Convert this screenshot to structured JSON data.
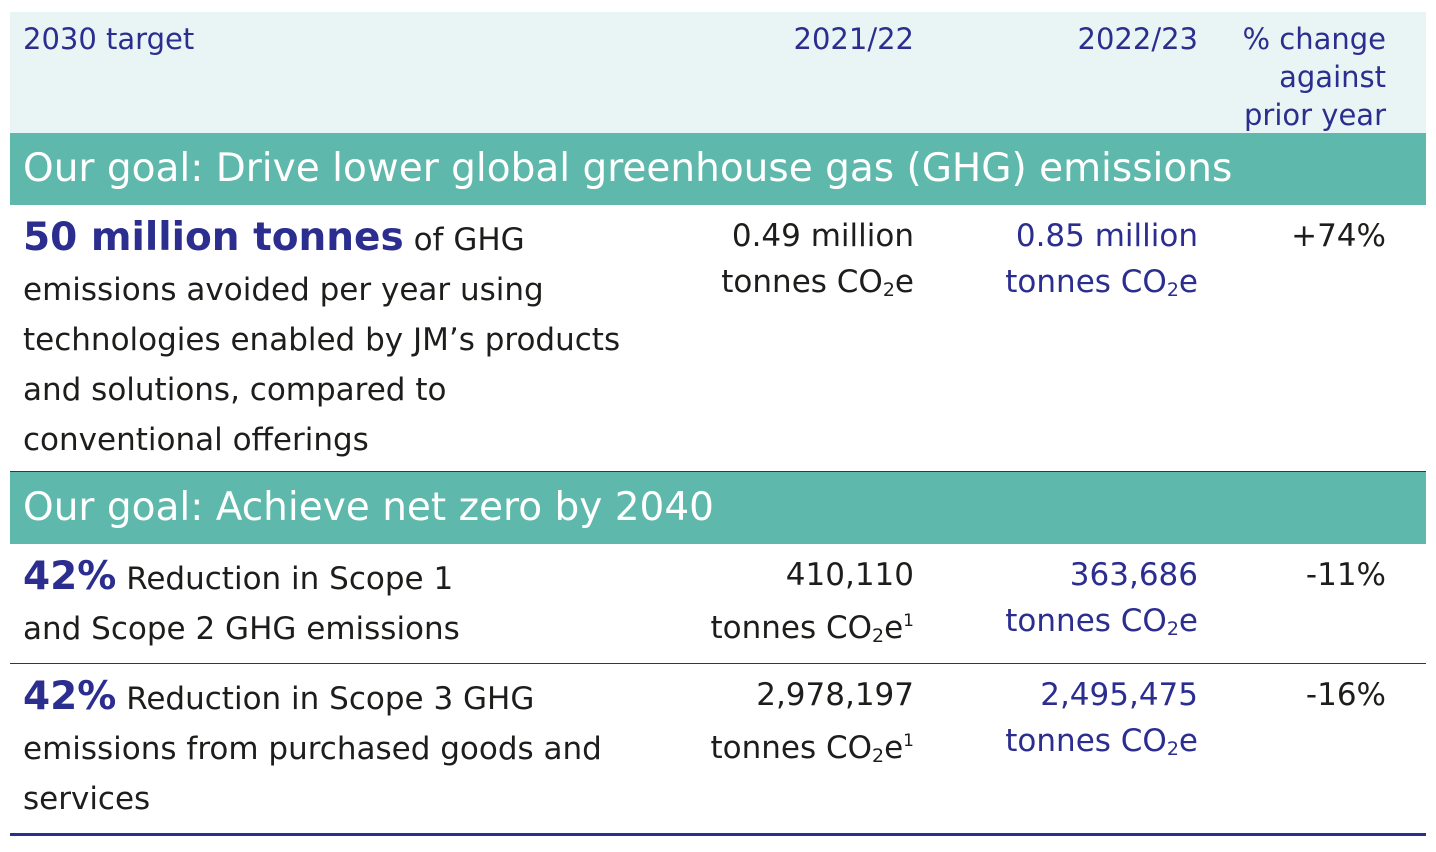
{
  "header": {
    "target": "2030 target",
    "year1": "2021/22",
    "year2": "2022/23",
    "change": "% change\nagainst\nprior year"
  },
  "goals": [
    {
      "title": "Our goal: Drive lower global greenhouse gas (GHG) emissions",
      "rows": [
        {
          "highlight": "50 million tonnes",
          "text": " of GHG emissions avoided per year using technologies enabled by JM’s products and solutions, compared to conventional offerings",
          "v1_line1": "0.49 million",
          "v1_unit": "tonnes CO",
          "v1_sub": "2",
          "v1_tail": "e",
          "v1_sup": "",
          "v2_line1": "0.85 million",
          "v2_unit": "tonnes CO",
          "v2_sub": "2",
          "v2_tail": "e",
          "change": "+74%"
        }
      ]
    },
    {
      "title": "Our goal: Achieve net zero by 2040",
      "rows": [
        {
          "highlight": "42%",
          "text": " Reduction in Scope 1 and Scope 2 GHG emissions",
          "v1_line1": "410,110",
          "v1_unit": "tonnes CO",
          "v1_sub": "2",
          "v1_tail": "e",
          "v1_sup": "1",
          "v2_line1": "363,686",
          "v2_unit": "tonnes CO",
          "v2_sub": "2",
          "v2_tail": "e",
          "change": "-11%"
        },
        {
          "highlight": "42%",
          "text": " Reduction in Scope 3 GHG emissions from purchased goods and services",
          "v1_line1": "2,978,197",
          "v1_unit": "tonnes CO",
          "v1_sub": "2",
          "v1_tail": "e",
          "v1_sup": "1",
          "v2_line1": "2,495,475",
          "v2_unit": "tonnes CO",
          "v2_sub": "2",
          "v2_tail": "e",
          "change": "-16%"
        }
      ]
    }
  ],
  "colors": {
    "header_bg": "#e9f5f4",
    "goal_bg": "#5eb8ab",
    "accent_blue": "#2b2e8f",
    "text": "#1d1d1b"
  }
}
